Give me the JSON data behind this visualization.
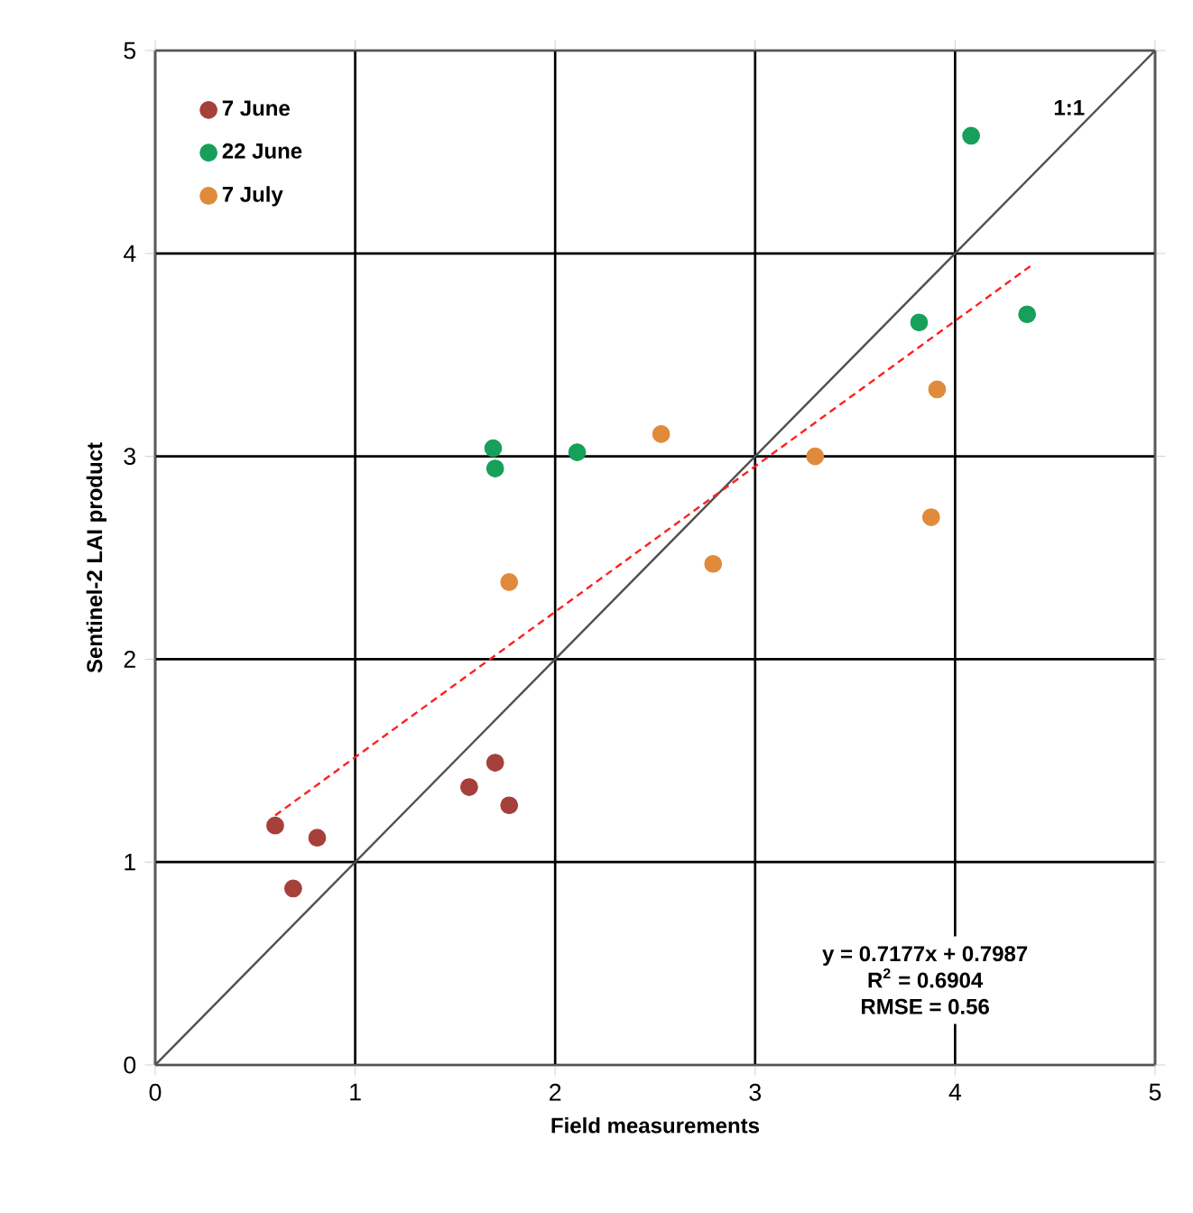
{
  "chart_data": {
    "type": "scatter",
    "xlabel": "Field measurements",
    "ylabel": "Sentinel-2 LAI product",
    "xlim": [
      0,
      5
    ],
    "ylim": [
      0,
      5
    ],
    "xticks": [
      0,
      1,
      2,
      3,
      4,
      5
    ],
    "yticks": [
      0,
      1,
      2,
      3,
      4,
      5
    ],
    "grid": true,
    "legend": "top left",
    "series": [
      {
        "name": "7 June",
        "color": "#a5403b",
        "marker": "circle",
        "x": [
          0.6,
          0.81,
          0.69,
          1.57,
          1.7,
          1.77
        ],
        "values": [
          1.18,
          1.12,
          0.87,
          1.37,
          1.49,
          1.28
        ]
      },
      {
        "name": "22 June",
        "color": "#16a05a",
        "marker": "circle",
        "x": [
          1.69,
          1.7,
          2.11,
          3.82,
          4.08,
          4.36
        ],
        "values": [
          3.04,
          2.94,
          3.02,
          3.66,
          4.58,
          3.7
        ]
      },
      {
        "name": "7 July",
        "color": "#e08a3c",
        "marker": "circle",
        "x": [
          1.77,
          2.53,
          2.79,
          3.3,
          3.91,
          3.88
        ],
        "values": [
          2.38,
          3.11,
          2.47,
          3.0,
          3.33,
          2.7
        ]
      },
      {
        "name": "1:1",
        "type": "line",
        "color": "#505050",
        "line_style": "solid",
        "marker": "none",
        "x": [
          0,
          5
        ],
        "values": [
          0,
          5
        ]
      },
      {
        "type": "line",
        "color": "#ff2020",
        "line_style": "dashed",
        "marker": "none",
        "x": [
          0.6,
          4.38
        ],
        "values": [
          1.23,
          3.94
        ]
      }
    ],
    "annotations": [
      "y = 0.7177x + 0.7987",
      "R$^{2}$ = 0.6904",
      "RMSE = 0.56"
    ]
  }
}
